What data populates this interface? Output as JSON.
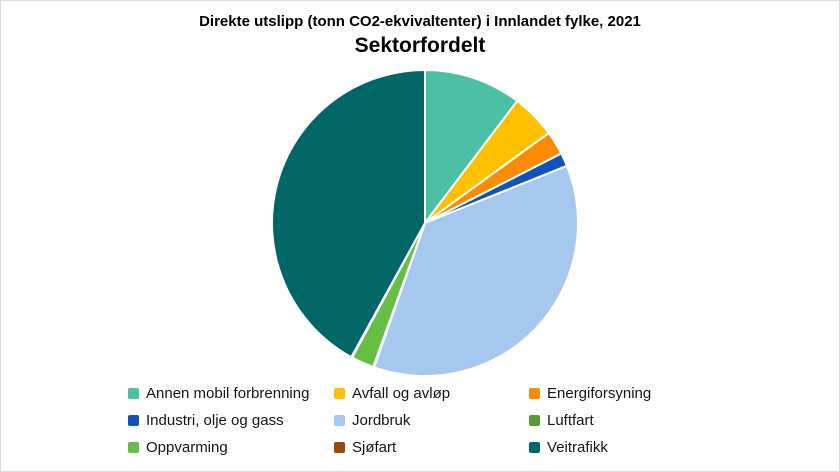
{
  "chart": {
    "title": "Direkte utslipp (tonn CO2-ekvivaltenter) i Innlandet fylke, 2021",
    "subtitle": "Sektorfordelt"
  },
  "frame": {
    "border_color": "#d9d9d9",
    "background_color": "#ffffff"
  },
  "chart_data": {
    "type": "pie",
    "title": "Direkte utslipp (tonn CO2-ekvivaltenter) i Innlandet fylke, 2021",
    "subtitle": "Sektorfordelt",
    "unit": "share of total in percent (estimated from slice angles)",
    "start_angle_deg": 0,
    "direction": "clockwise",
    "legend_position": "bottom",
    "separator_color": "#ffffff",
    "slices": [
      {
        "label": "Annen mobil forbrenning",
        "value": 10.3,
        "color": "#4BC0A5"
      },
      {
        "label": "Avfall og avløp",
        "value": 4.7,
        "color": "#FFC000"
      },
      {
        "label": "Energiforsyning",
        "value": 2.5,
        "color": "#FB8B00"
      },
      {
        "label": "Industri, olje og gass",
        "value": 1.4,
        "color": "#0F52BA"
      },
      {
        "label": "Jordbruk",
        "value": 36.5,
        "color": "#A6C8EE"
      },
      {
        "label": "Luftfart",
        "value": 0.1,
        "color": "#569D38"
      },
      {
        "label": "Oppvarming",
        "value": 2.4,
        "color": "#66BE43"
      },
      {
        "label": "Sjøfart",
        "value": 0.1,
        "color": "#9E480E"
      },
      {
        "label": "Veitrafikk",
        "value": 42.0,
        "color": "#006666"
      }
    ]
  }
}
